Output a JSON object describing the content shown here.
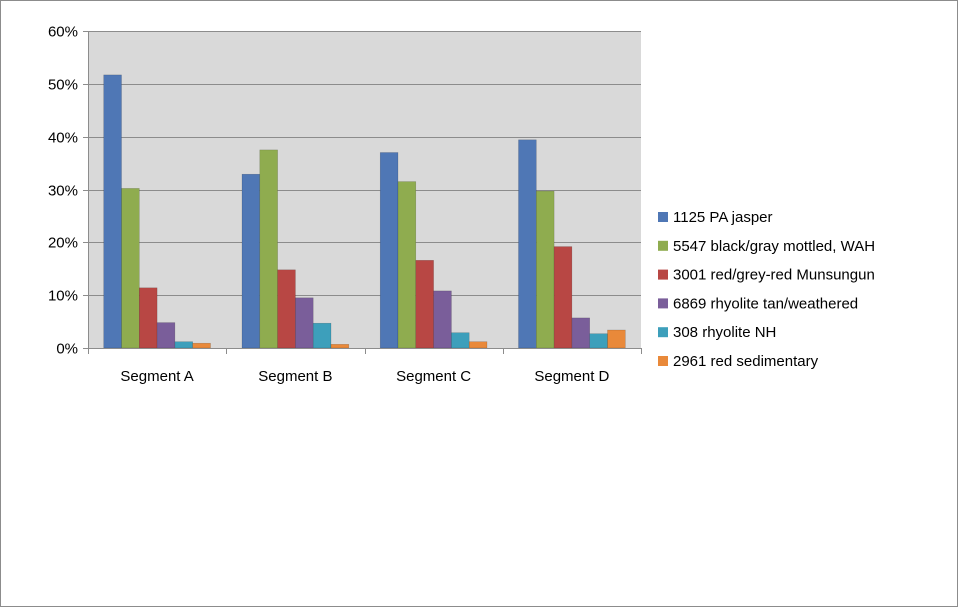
{
  "chart_data": {
    "type": "bar",
    "title": "",
    "xlabel": "",
    "ylabel": "",
    "ylim": [
      0,
      0.6
    ],
    "ytick_values": [
      0,
      0.1,
      0.2,
      0.3,
      0.4,
      0.5,
      0.6
    ],
    "ytick_labels": [
      "0%",
      "10%",
      "20%",
      "30%",
      "40%",
      "50%",
      "60%"
    ],
    "categories": [
      "Segment A",
      "Segment B",
      "Segment C",
      "Segment D"
    ],
    "grid": "horizontal",
    "plot_background": "#d9d9d9",
    "legend_position": "right",
    "series": [
      {
        "name": "1125 PA jasper",
        "color": "#4f77b5",
        "values": [
          0.517,
          0.329,
          0.37,
          0.394
        ]
      },
      {
        "name": "5547 black/gray mottled, WAH",
        "color": "#8fac4f",
        "values": [
          0.302,
          0.375,
          0.315,
          0.297
        ]
      },
      {
        "name": "3001 red/grey-red Munsungun",
        "color": "#b84744",
        "values": [
          0.114,
          0.148,
          0.166,
          0.192
        ]
      },
      {
        "name": "6869 rhyolite tan/weathered",
        "color": "#7a5e9a",
        "values": [
          0.048,
          0.095,
          0.108,
          0.057
        ]
      },
      {
        "name": "308 rhyolite NH",
        "color": "#3d9fbb",
        "values": [
          0.012,
          0.047,
          0.029,
          0.027
        ]
      },
      {
        "name": "2961 red sedimentary",
        "color": "#e9893a",
        "values": [
          0.009,
          0.007,
          0.012,
          0.034
        ]
      }
    ]
  }
}
